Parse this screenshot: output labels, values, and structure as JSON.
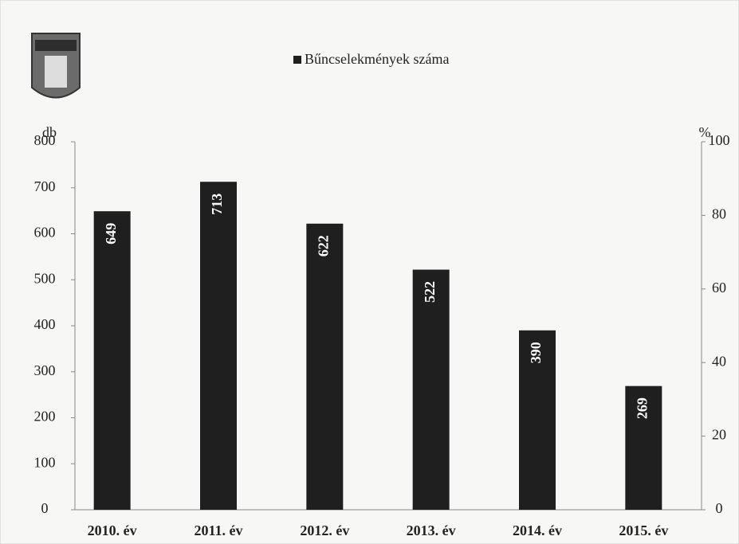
{
  "chart_data": {
    "type": "bar",
    "y_label": "db",
    "y2_label": "%",
    "categories": [
      "2010. év",
      "2011. év",
      "2012. év",
      "2013. év",
      "2014. év",
      "2015. év"
    ],
    "series": [
      {
        "name": "Bűncselekmények száma",
        "color": "#1f1f1f",
        "values": [
          649,
          713,
          622,
          522,
          390,
          269
        ]
      }
    ],
    "ylim": [
      0,
      800
    ],
    "yticks": [
      0,
      100,
      200,
      300,
      400,
      500,
      600,
      700,
      800
    ],
    "y2lim": [
      0,
      100
    ],
    "y2ticks": [
      0,
      20,
      40,
      60,
      80,
      100
    ],
    "legend": "top"
  }
}
